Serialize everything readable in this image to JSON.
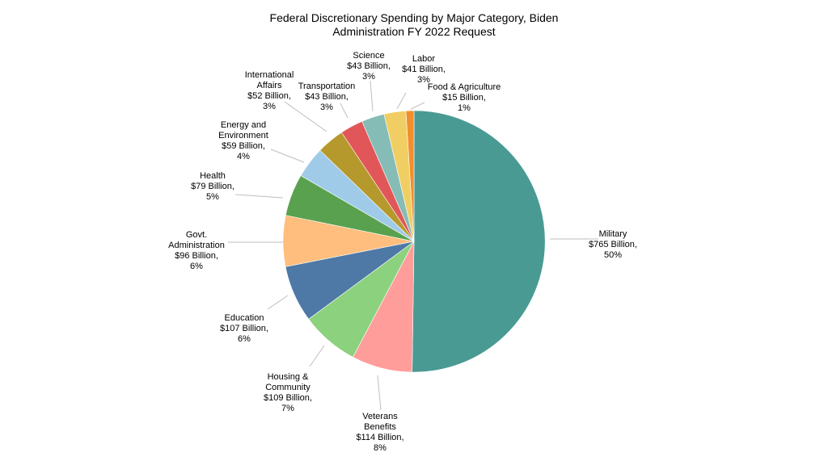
{
  "chart_data": {
    "type": "pie",
    "title_lines": [
      "Federal Discretionary Spending by Major Category, Biden",
      "Administration FY 2022 Request"
    ],
    "unit": "Billion",
    "slices": [
      {
        "label_lines": [
          "Military",
          "$765 Billion,",
          "50%"
        ],
        "value": 765,
        "percent": 50,
        "color": "#4a9a94"
      },
      {
        "label_lines": [
          "Veterans",
          "Benefits",
          "$114 Billion,",
          "8%"
        ],
        "value": 114,
        "percent": 8,
        "color": "#ff9d9a"
      },
      {
        "label_lines": [
          "Housing &",
          "Community",
          "$109 Billion,",
          "7%"
        ],
        "value": 109,
        "percent": 7,
        "color": "#8cd17d"
      },
      {
        "label_lines": [
          "Education",
          "$107 Billion,",
          "6%"
        ],
        "value": 107,
        "percent": 6,
        "color": "#4e79a7"
      },
      {
        "label_lines": [
          "Govt.",
          "Administration",
          "$96 Billion,",
          "6%"
        ],
        "value": 96,
        "percent": 6,
        "color": "#ffbe7d"
      },
      {
        "label_lines": [
          "Health",
          "$79 Billion,",
          "5%"
        ],
        "value": 79,
        "percent": 5,
        "color": "#59a14f"
      },
      {
        "label_lines": [
          "Energy and",
          "Environment",
          "$59 Billion,",
          "4%"
        ],
        "value": 59,
        "percent": 4,
        "color": "#a0cbe8"
      },
      {
        "label_lines": [
          "International",
          "Affairs",
          "$52 Billion,",
          "3%"
        ],
        "value": 52,
        "percent": 3,
        "color": "#b6992d"
      },
      {
        "label_lines": [
          "Transportation",
          "$43 Billion,",
          "3%"
        ],
        "value": 43,
        "percent": 3,
        "color": "#e15759"
      },
      {
        "label_lines": [
          "Science",
          "$43 Billion,",
          "3%"
        ],
        "value": 43,
        "percent": 3,
        "color": "#86bcb6"
      },
      {
        "label_lines": [
          "Labor",
          "$41 Billion,",
          "3%"
        ],
        "value": 41,
        "percent": 3,
        "color": "#f1ce63"
      },
      {
        "label_lines": [
          "Food & Agriculture",
          "$15 Billion,",
          "1%"
        ],
        "value": 15,
        "percent": 1,
        "color": "#f28e2b"
      }
    ],
    "legend": "none",
    "label_placement": "outside with leader lines"
  }
}
